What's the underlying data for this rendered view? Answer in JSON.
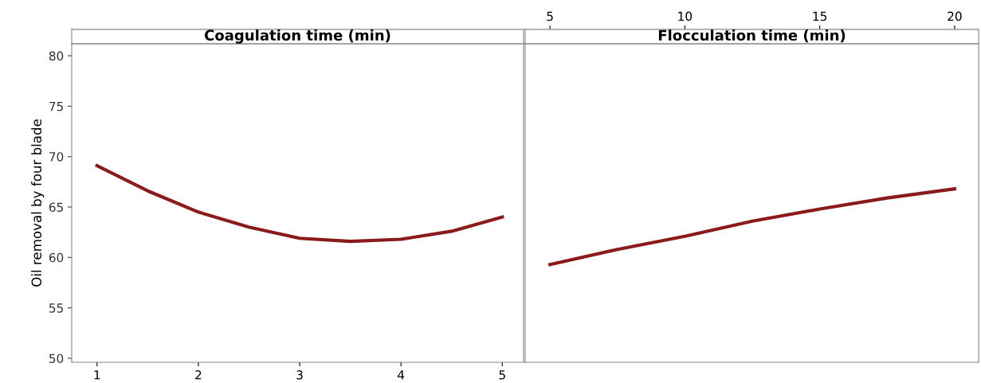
{
  "chart_data": [
    {
      "type": "line",
      "title": "Coagulation time (min)",
      "ylabel": "Oil removal by four blade",
      "x": [
        1,
        1.5,
        2,
        2.5,
        3,
        3.5,
        4,
        4.5,
        5
      ],
      "xlim": [
        0.75,
        5.21
      ],
      "xticks": [
        1,
        2,
        3,
        4,
        5
      ],
      "ylim": [
        49.6,
        81.2
      ],
      "yticks": [
        50,
        55,
        60,
        65,
        70,
        75,
        80
      ],
      "grid": false,
      "legend": false,
      "marker": "none",
      "line_style": "solid",
      "series": [
        {
          "color": "#8b1a1a",
          "values": [
            69.1,
            66.6,
            64.5,
            63.0,
            61.9,
            61.6,
            61.8,
            62.6,
            64.0
          ]
        }
      ]
    },
    {
      "type": "line",
      "title": "Flocculation time (min)",
      "x": [
        5,
        7.5,
        10,
        12.5,
        15,
        17.5,
        20
      ],
      "xlim": [
        4.08,
        20.89
      ],
      "xticks": [
        5,
        10,
        15,
        20
      ],
      "ylim": [
        49.6,
        81.2
      ],
      "tick_labels": "x",
      "grid": false,
      "legend": false,
      "marker": "none",
      "line_style": "solid",
      "series": [
        {
          "color": "#8b1a1a",
          "values": [
            59.3,
            60.8,
            62.1,
            63.6,
            64.8,
            65.9,
            66.8
          ]
        }
      ]
    }
  ]
}
